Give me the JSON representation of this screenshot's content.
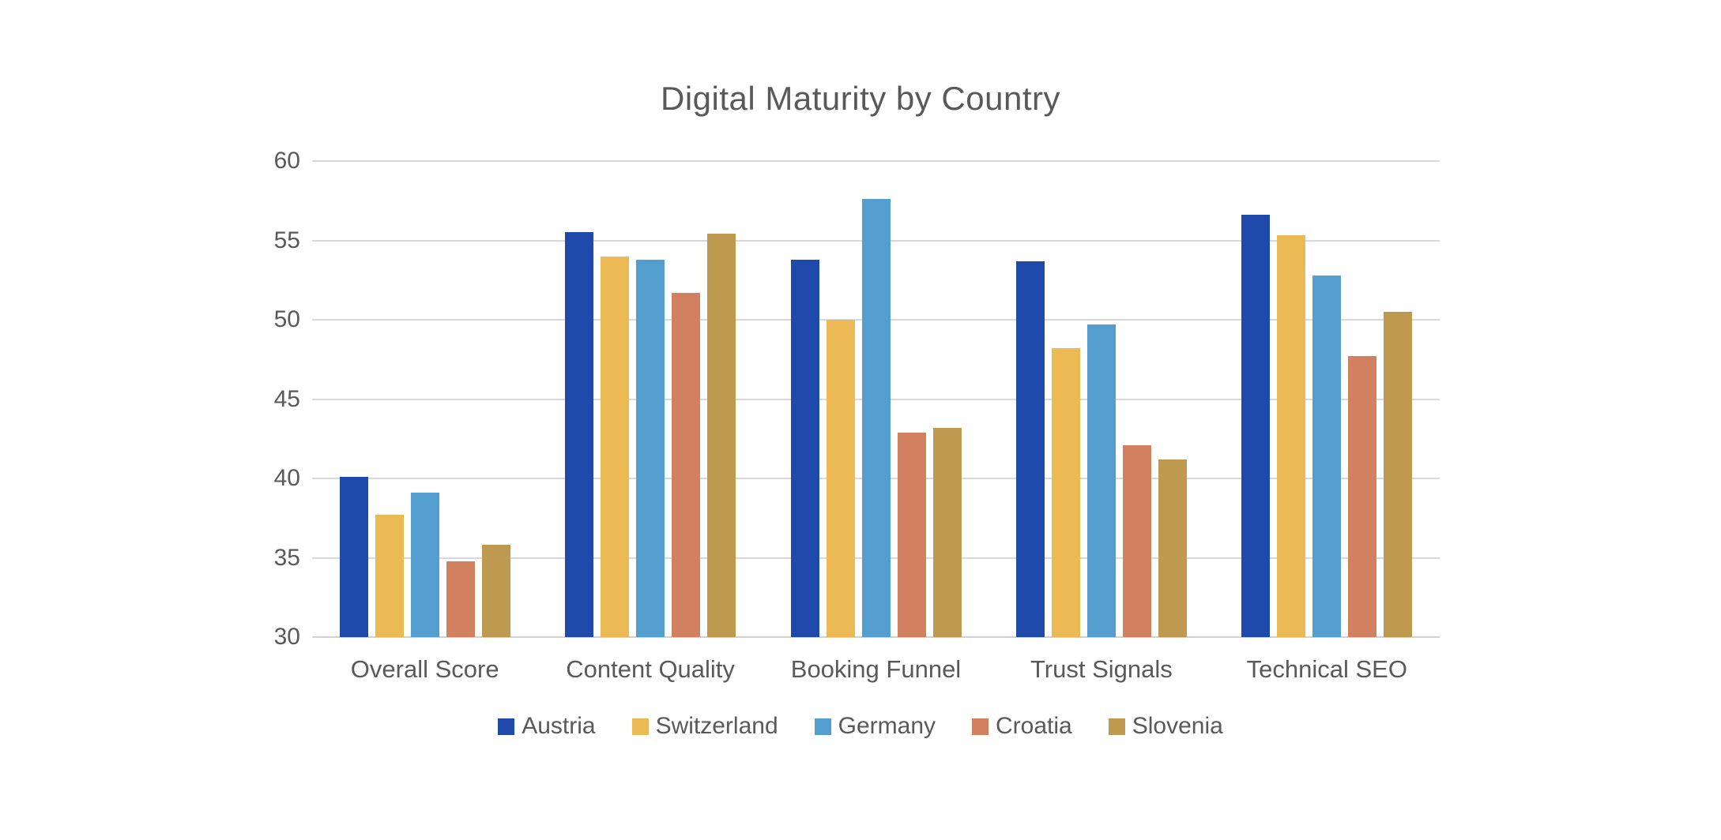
{
  "chart_data": {
    "type": "bar",
    "title": "Digital Maturity by Country",
    "categories": [
      "Overall Score",
      "Content Quality",
      "Booking Funnel",
      "Trust Signals",
      "Technical SEO"
    ],
    "series": [
      {
        "name": "Austria",
        "color": "#2049AC",
        "values": [
          40.1,
          55.5,
          53.8,
          53.7,
          56.6
        ]
      },
      {
        "name": "Switzerland",
        "color": "#EBBA55",
        "values": [
          37.7,
          54.0,
          50.0,
          48.2,
          55.3
        ]
      },
      {
        "name": "Germany",
        "color": "#549ECF",
        "values": [
          39.1,
          53.8,
          57.6,
          49.7,
          52.8
        ]
      },
      {
        "name": "Croatia",
        "color": "#D1815F",
        "values": [
          34.8,
          51.7,
          42.9,
          42.1,
          47.7
        ]
      },
      {
        "name": "Slovenia",
        "color": "#BE9950",
        "values": [
          35.8,
          55.4,
          43.2,
          41.2,
          50.5
        ]
      }
    ],
    "xlabel": "",
    "ylabel": "",
    "ylim": [
      30,
      60
    ],
    "yticks": [
      30,
      35,
      40,
      45,
      50,
      55,
      60
    ],
    "grid": true,
    "legend_position": "bottom"
  },
  "style": {
    "text_color": "#595959",
    "grid_color": "#D9D9D9",
    "axis_line_color": "#D2D2D2",
    "background_color": "#FFFFFF"
  }
}
